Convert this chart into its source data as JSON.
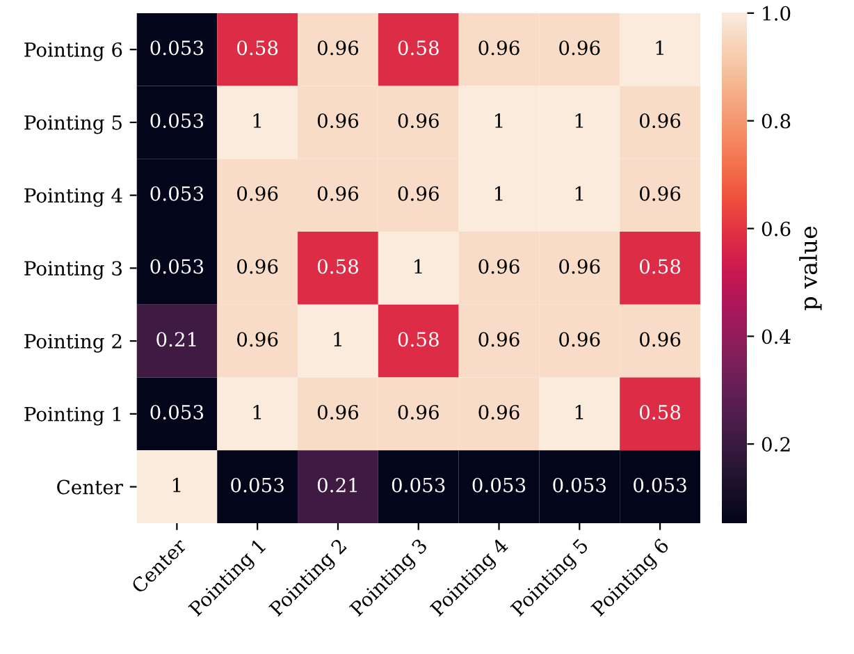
{
  "chart_data": {
    "type": "heatmap",
    "clabel": "p value",
    "categories": [
      "Center",
      "Pointing 1",
      "Pointing 2",
      "Pointing 3",
      "Pointing 4",
      "Pointing 5",
      "Pointing 6"
    ],
    "y_categories": [
      "Pointing 6",
      "Pointing 5",
      "Pointing 4",
      "Pointing 3",
      "Pointing 2",
      "Pointing 1",
      "Center"
    ],
    "cells": [
      [
        0.053,
        0.58,
        0.96,
        0.58,
        0.96,
        0.96,
        1
      ],
      [
        0.053,
        1,
        0.96,
        0.96,
        1,
        1,
        0.96
      ],
      [
        0.053,
        0.96,
        0.96,
        0.96,
        1,
        1,
        0.96
      ],
      [
        0.053,
        0.96,
        0.58,
        1,
        0.96,
        0.96,
        0.58
      ],
      [
        0.21,
        0.96,
        1,
        0.58,
        0.96,
        0.96,
        0.96
      ],
      [
        0.053,
        1,
        0.96,
        0.96,
        0.96,
        1,
        0.58
      ],
      [
        1,
        0.053,
        0.21,
        0.053,
        0.053,
        0.053,
        0.053
      ]
    ],
    "data_labels": true,
    "clim": [
      0.053,
      1
    ],
    "cticks": [
      0.2,
      0.4,
      0.6,
      0.8,
      {
        "value": 1,
        "label": "1.0"
      }
    ]
  }
}
